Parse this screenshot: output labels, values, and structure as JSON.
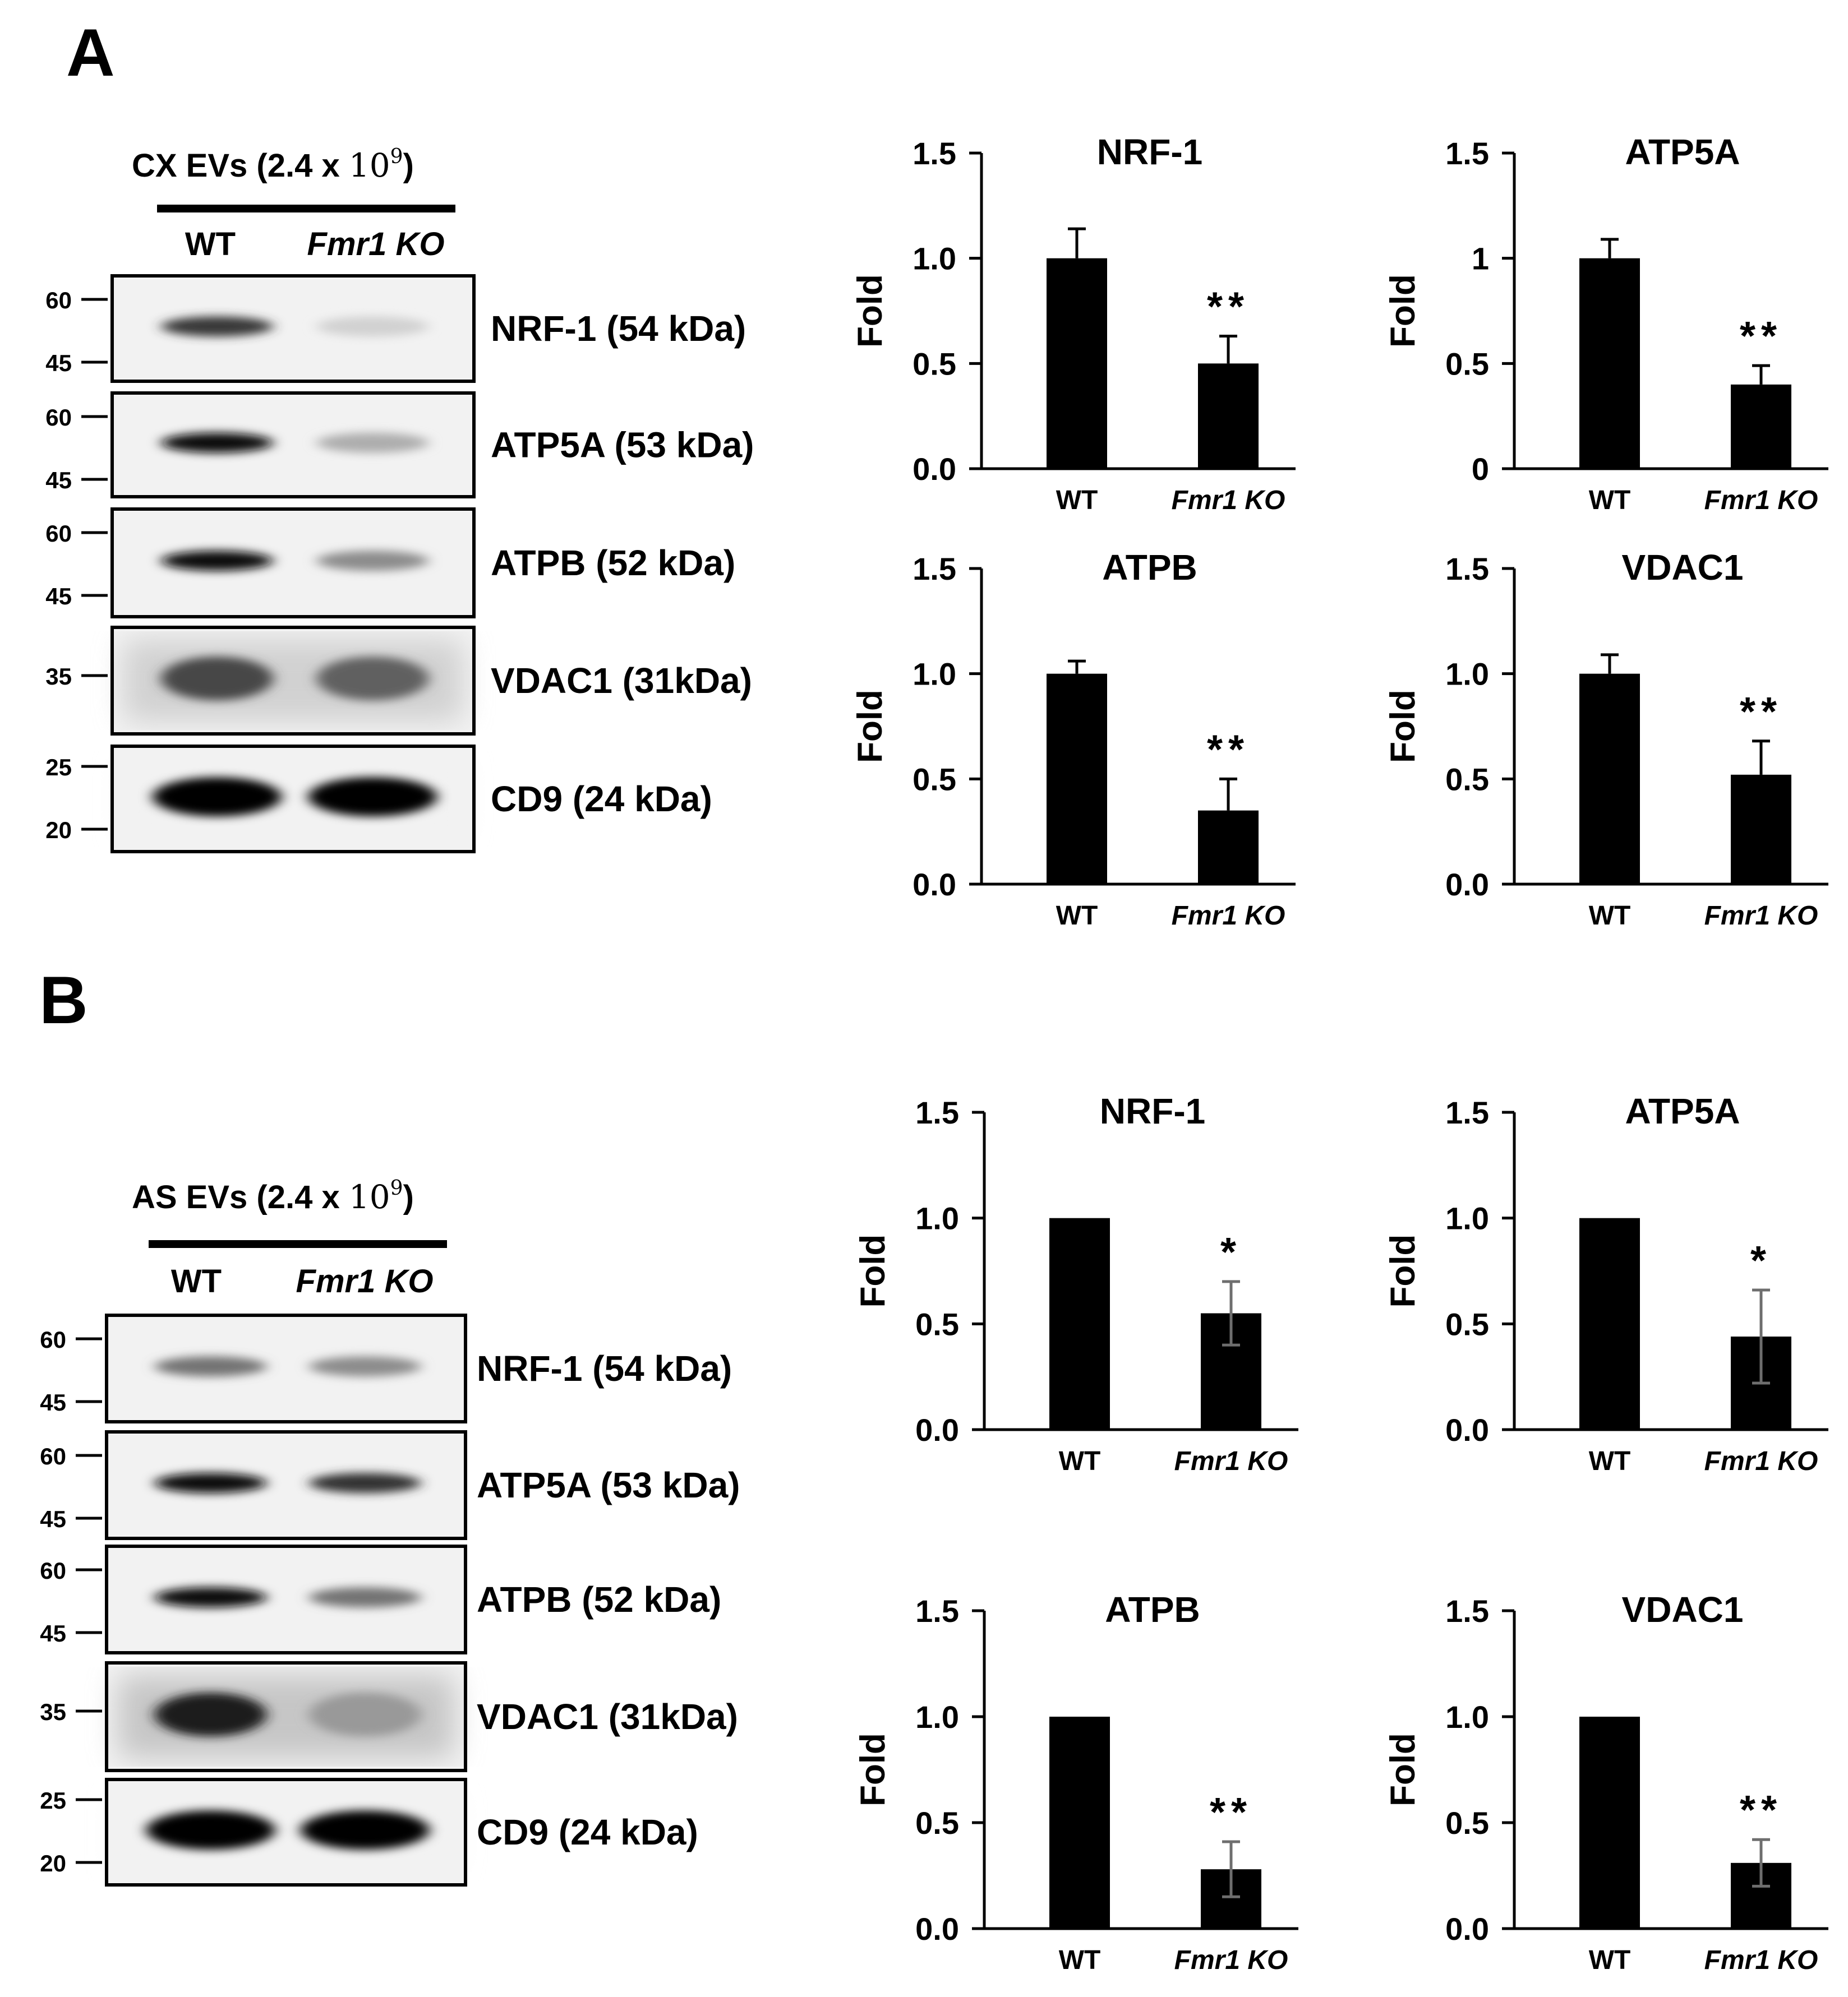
{
  "panels": [
    {
      "letter": "A",
      "blot": {
        "title_prefix": "CX EVs (2.4 x ",
        "title_base": "10",
        "title_exp": "9",
        "title_suffix": ")",
        "lanes": [
          "WT",
          "Fmr1 KO"
        ],
        "rows": [
          {
            "label": "NRF-1 (54 kDa)",
            "markers": [
              "60",
              "45"
            ],
            "intensity": [
              0.78,
              0.18
            ]
          },
          {
            "label": "ATP5A (53 kDa)",
            "markers": [
              "60",
              "45"
            ],
            "intensity": [
              0.97,
              0.32
            ]
          },
          {
            "label": "ATPB (52 kDa)",
            "markers": [
              "60",
              "45"
            ],
            "intensity": [
              0.95,
              0.45
            ]
          },
          {
            "label": "VDAC1 (31kDa)",
            "markers": [
              "35"
            ],
            "intensity": [
              0.72,
              0.62
            ]
          },
          {
            "label": "CD9 (24 kDa)",
            "markers": [
              "25",
              "20"
            ],
            "intensity": [
              1.0,
              1.0
            ]
          }
        ]
      }
    },
    {
      "letter": "B",
      "blot": {
        "title_prefix": "AS EVs (2.4 x ",
        "title_base": "10",
        "title_exp": "9",
        "title_suffix": ")",
        "lanes": [
          "WT",
          "Fmr1 KO"
        ],
        "rows": [
          {
            "label": "NRF-1 (54 kDa)",
            "markers": [
              "60",
              "45"
            ],
            "intensity": [
              0.55,
              0.45
            ]
          },
          {
            "label": "ATP5A (53 kDa)",
            "markers": [
              "60",
              "45"
            ],
            "intensity": [
              0.95,
              0.8
            ]
          },
          {
            "label": "ATPB (52 kDa)",
            "markers": [
              "60",
              "45"
            ],
            "intensity": [
              0.95,
              0.55
            ]
          },
          {
            "label": "VDAC1 (31kDa)",
            "markers": [
              "35"
            ],
            "intensity": [
              0.9,
              0.4
            ]
          },
          {
            "label": "CD9 (24 kDa)",
            "markers": [
              "25",
              "20"
            ],
            "intensity": [
              1.0,
              1.0
            ]
          }
        ]
      }
    }
  ],
  "chart_data": [
    {
      "panel": "A",
      "type": "bar",
      "title": "NRF-1",
      "ylabel": "Fold",
      "categories": [
        "WT",
        "Fmr1 KO"
      ],
      "values": [
        1.0,
        0.5
      ],
      "errors": [
        0.14,
        0.13
      ],
      "significance": [
        "",
        "**"
      ],
      "yticks": [
        "0.0",
        "0.5",
        "1.0",
        "1.5"
      ],
      "ylim": [
        0,
        1.5
      ]
    },
    {
      "panel": "A",
      "type": "bar",
      "title": "ATP5A",
      "ylabel": "Fold",
      "categories": [
        "WT",
        "Fmr1 KO"
      ],
      "values": [
        1.0,
        0.4
      ],
      "errors": [
        0.09,
        0.09
      ],
      "significance": [
        "",
        "**"
      ],
      "yticks": [
        "0",
        "0.5",
        "1",
        "1.5"
      ],
      "ylim": [
        0,
        1.5
      ]
    },
    {
      "panel": "A",
      "type": "bar",
      "title": "ATPB",
      "ylabel": "Fold",
      "categories": [
        "WT",
        "Fmr1 KO"
      ],
      "values": [
        1.0,
        0.35
      ],
      "errors": [
        0.06,
        0.15
      ],
      "significance": [
        "",
        "**"
      ],
      "yticks": [
        "0.0",
        "0.5",
        "1.0",
        "1.5"
      ],
      "ylim": [
        0,
        1.5
      ]
    },
    {
      "panel": "A",
      "type": "bar",
      "title": "VDAC1",
      "ylabel": "Fold",
      "categories": [
        "WT",
        "Fmr1 KO"
      ],
      "values": [
        1.0,
        0.52
      ],
      "errors": [
        0.09,
        0.16
      ],
      "significance": [
        "",
        "**"
      ],
      "yticks": [
        "0.0",
        "0.5",
        "1.0",
        "1.5"
      ],
      "ylim": [
        0,
        1.5
      ]
    },
    {
      "panel": "B",
      "type": "bar",
      "title": "NRF-1",
      "ylabel": "Fold",
      "categories": [
        "WT",
        "Fmr1 KO"
      ],
      "values": [
        1.0,
        0.55
      ],
      "errors": [
        0.0,
        0.15
      ],
      "significance": [
        "",
        "*"
      ],
      "yticks": [
        "0.0",
        "0.5",
        "1.0",
        "1.5"
      ],
      "ylim": [
        0,
        1.5
      ]
    },
    {
      "panel": "B",
      "type": "bar",
      "title": "ATP5A",
      "ylabel": "Fold",
      "categories": [
        "WT",
        "Fmr1 KO"
      ],
      "values": [
        1.0,
        0.44
      ],
      "errors": [
        0.0,
        0.22
      ],
      "significance": [
        "",
        "*"
      ],
      "yticks": [
        "0.0",
        "0.5",
        "1.0",
        "1.5"
      ],
      "ylim": [
        0,
        1.5
      ]
    },
    {
      "panel": "B",
      "type": "bar",
      "title": "ATPB",
      "ylabel": "Fold",
      "categories": [
        "WT",
        "Fmr1 KO"
      ],
      "values": [
        1.0,
        0.28
      ],
      "errors": [
        0.0,
        0.13
      ],
      "significance": [
        "",
        "**"
      ],
      "yticks": [
        "0.0",
        "0.5",
        "1.0",
        "1.5"
      ],
      "ylim": [
        0,
        1.5
      ]
    },
    {
      "panel": "B",
      "type": "bar",
      "title": "VDAC1",
      "ylabel": "Fold",
      "categories": [
        "WT",
        "Fmr1 KO"
      ],
      "values": [
        1.0,
        0.31
      ],
      "errors": [
        0.0,
        0.11
      ],
      "significance": [
        "",
        "**"
      ],
      "yticks": [
        "0.0",
        "0.5",
        "1.0",
        "1.5"
      ],
      "ylim": [
        0,
        1.5
      ]
    }
  ]
}
